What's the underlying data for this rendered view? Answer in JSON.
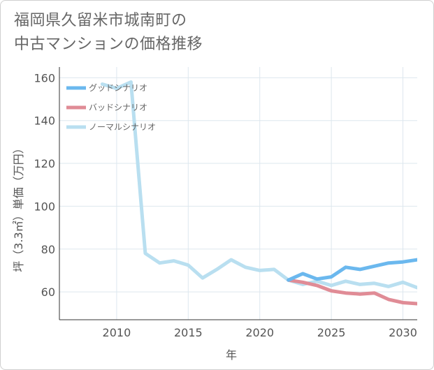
{
  "chart_data": {
    "type": "line",
    "title_lines": [
      "福岡県久留米市城南町の",
      "中古マンションの価格推移"
    ],
    "xlabel": "年",
    "ylabel": "坪（3.3㎡）単価（万円）",
    "xlim": [
      2006,
      2031
    ],
    "ylim": [
      47,
      165
    ],
    "x_ticks": [
      2010,
      2015,
      2020,
      2025,
      2030
    ],
    "y_ticks": [
      60,
      80,
      100,
      120,
      140,
      160
    ],
    "series": [
      {
        "name": "グッドシナリオ",
        "color": "#6bb8ee",
        "x": [
          2022,
          2023,
          2024,
          2025,
          2026,
          2027,
          2028,
          2029,
          2030,
          2031
        ],
        "values": [
          65.5,
          68.5,
          66.0,
          67.0,
          71.5,
          70.5,
          72.0,
          73.5,
          74.0,
          75.0
        ]
      },
      {
        "name": "バッドシナリオ",
        "color": "#e08c96",
        "x": [
          2022,
          2023,
          2024,
          2025,
          2026,
          2027,
          2028,
          2029,
          2030,
          2031
        ],
        "values": [
          65.5,
          64.5,
          63.0,
          60.5,
          59.5,
          59.0,
          59.5,
          56.5,
          55.0,
          54.5
        ]
      },
      {
        "name": "ノーマルシナリオ",
        "color": "#b9dff0",
        "x": [
          2009,
          2010,
          2011,
          2012,
          2013,
          2014,
          2015,
          2016,
          2017,
          2018,
          2019,
          2020,
          2021,
          2022,
          2023,
          2024,
          2025,
          2026,
          2027,
          2028,
          2029,
          2030,
          2031
        ],
        "values": [
          157,
          155,
          158,
          78,
          73.5,
          74.5,
          72.5,
          66.5,
          70.5,
          75.0,
          71.5,
          70.0,
          70.5,
          65.5,
          63.5,
          65.0,
          63.0,
          65.0,
          63.5,
          64.0,
          62.5,
          64.5,
          62.0
        ]
      }
    ]
  }
}
